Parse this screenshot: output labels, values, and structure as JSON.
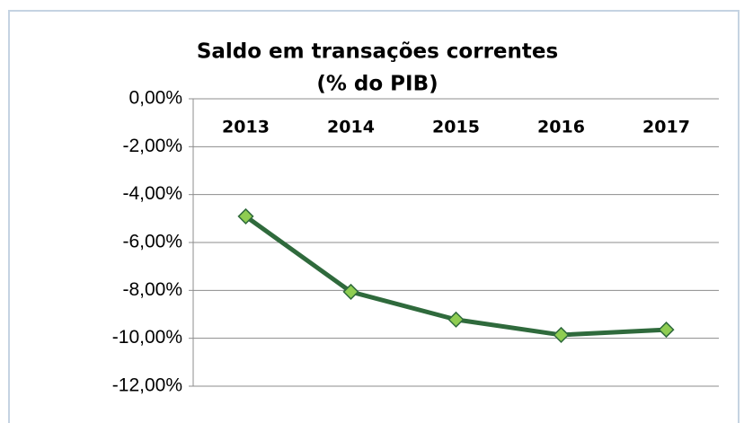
{
  "chart_data": {
    "type": "line",
    "title": [
      "Saldo em transações correntes",
      "(% do PIB)"
    ],
    "categories": [
      "2013",
      "2014",
      "2015",
      "2016",
      "2017"
    ],
    "series": [
      {
        "name": "Saldo em transações correntes",
        "color": "#2f6a3c",
        "marker_color": "#8fcd52",
        "values": [
          -4.91,
          -8.06,
          -9.22,
          -9.86,
          -9.64
        ]
      }
    ],
    "ylim": [
      -12,
      0
    ],
    "yticks": [
      {
        "value": 0,
        "label": "0,00%"
      },
      {
        "value": -2,
        "label": "-2,00%"
      },
      {
        "value": -4,
        "label": "-4,00%"
      },
      {
        "value": -6,
        "label": "-6,00%"
      },
      {
        "value": -8,
        "label": "-8,00%"
      },
      {
        "value": -10,
        "label": "-10,00%"
      },
      {
        "value": -12,
        "label": "-12,00%"
      }
    ],
    "grid": true
  }
}
